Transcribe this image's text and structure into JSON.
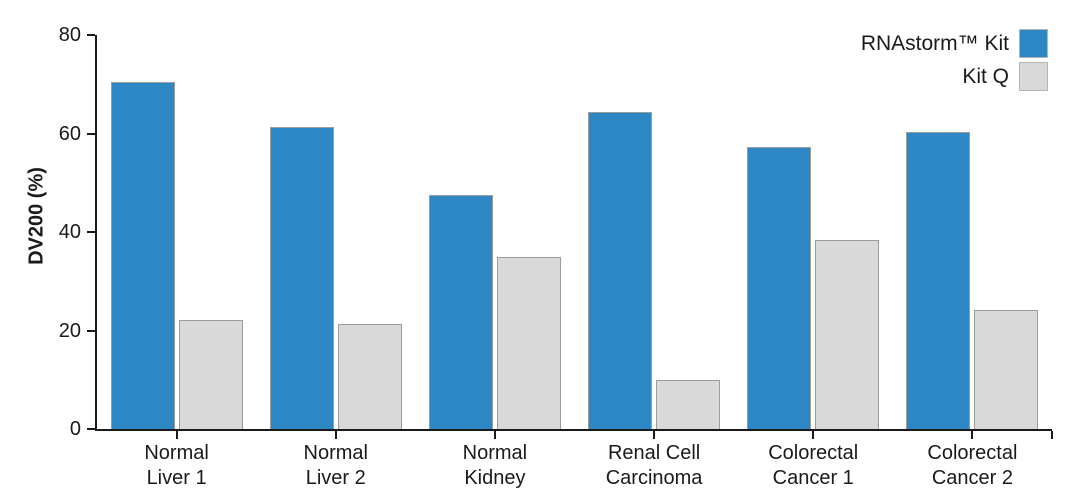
{
  "chart_data": {
    "type": "bar",
    "title": "",
    "xlabel": "",
    "ylabel": "DV200 (%)",
    "ylim": [
      0,
      80
    ],
    "yticks": [
      0,
      20,
      40,
      60,
      80
    ],
    "grid": false,
    "legend_position": "top-right",
    "axis_color": "#1a1a1a",
    "bar_border_color": "#9c9c9c",
    "categories": [
      [
        "Normal",
        "Liver 1"
      ],
      [
        "Normal",
        "Liver 2"
      ],
      [
        "Normal",
        "Kidney"
      ],
      [
        "Renal Cell",
        "Carcinoma"
      ],
      [
        "Colorectal",
        "Cancer 1"
      ],
      [
        "Colorectal",
        "Cancer 2"
      ]
    ],
    "series": [
      {
        "name": "RNAstorm™ Kit",
        "color": "#2e87c5",
        "values": [
          70.4,
          61.3,
          47.5,
          64.4,
          57.3,
          60.3
        ]
      },
      {
        "name": "Kit Q",
        "color": "#d9d9d9",
        "values": [
          22.1,
          21.4,
          35.0,
          10.0,
          38.4,
          24.2
        ]
      }
    ]
  }
}
